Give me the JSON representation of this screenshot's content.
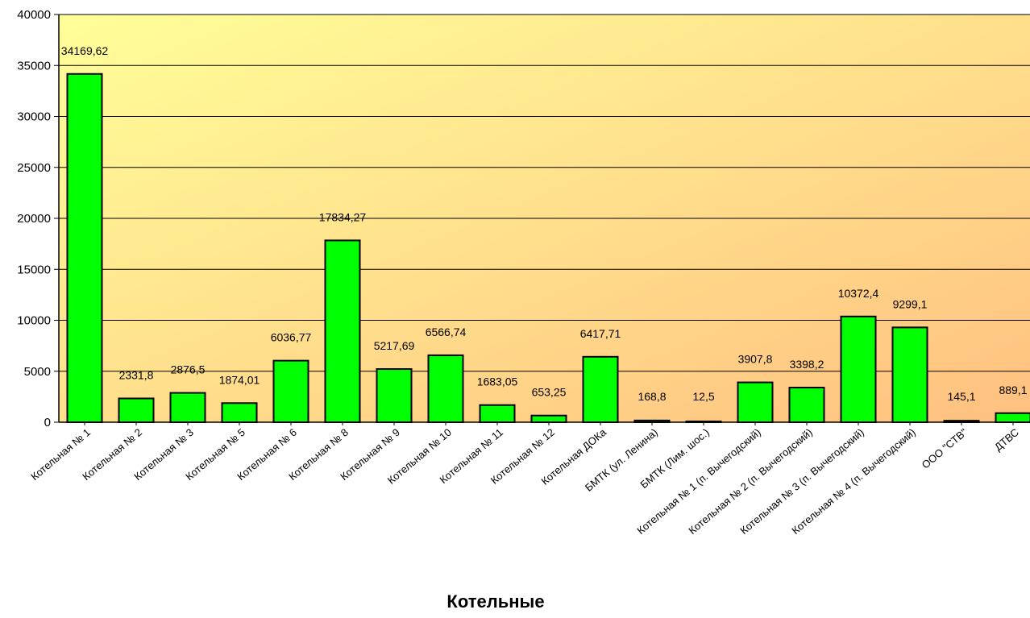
{
  "chart_data": {
    "type": "bar",
    "title": "",
    "xlabel": "Котельные",
    "ylabel": "",
    "ylim": [
      0,
      40000
    ],
    "yticks": [
      0,
      5000,
      10000,
      15000,
      20000,
      25000,
      30000,
      35000,
      40000
    ],
    "grid": true,
    "legend": "none",
    "categories": [
      "Котельная № 1",
      "Котельная № 2",
      "Котельная № 3",
      "Котельная № 5",
      "Котельная № 6",
      "Котельная № 8",
      "Котельная № 9",
      "Котельная № 10",
      "Котельная № 11",
      "Котельная № 12",
      "Котельная ДОКа",
      "БМТК (ул. Ленина)",
      "БМТК (Лим. шос.)",
      "Котельная № 1 (п. Вычегодский)",
      "Котельная № 2 (п. Вычегодский)",
      "Котельная № 3 (п. Вычегодский)",
      "Котельная № 4 (п. Вычегодский)",
      "ООО \"СТВ\"",
      "ДТВС"
    ],
    "values": [
      34169.62,
      2331.8,
      2876.5,
      1874.01,
      6036.77,
      17834.27,
      5217.69,
      6566.74,
      1683.05,
      653.25,
      6417.71,
      168.8,
      12.5,
      3907.8,
      3398.2,
      10372.4,
      9299.1,
      145.1,
      889.1
    ],
    "value_labels": [
      "34169,62",
      "2331,8",
      "2876,5",
      "1874,01",
      "6036,77",
      "17834,27",
      "5217,69",
      "6566,74",
      "1683,05",
      "653,25",
      "6417,71",
      "168,8",
      "12,5",
      "3907,8",
      "3398,2",
      "10372,4",
      "9299,1",
      "145,1",
      "889,1"
    ],
    "colors": {
      "bar_fill": "#00ff00",
      "bar_stroke": "#000000",
      "plot_bg_start": "#ffff99",
      "plot_bg_end": "#ffc080",
      "grid": "#000000"
    }
  }
}
